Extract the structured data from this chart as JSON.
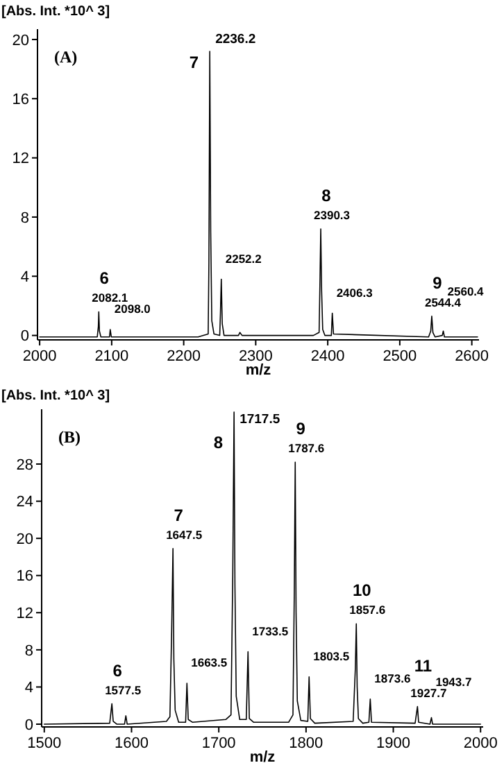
{
  "chart_data": [
    {
      "type": "line",
      "title": "(A)",
      "ylabel": "[Abs. Int. *10^ 3]",
      "xlabel": "m/z",
      "xlim": [
        1997,
        2610
      ],
      "xticks": [
        2000,
        2100,
        2200,
        2300,
        2400,
        2500,
        2600
      ],
      "ylim": [
        -0.3,
        20.7
      ],
      "yticks": [
        0,
        4,
        8,
        12,
        16,
        20
      ],
      "x": [
        2000,
        2080,
        2081.5,
        2082.1,
        2083,
        2085,
        2097,
        2098,
        2099.5,
        2220,
        2234,
        2235,
        2236.2,
        2237.5,
        2239,
        2242,
        2250,
        2251,
        2252.2,
        2253.5,
        2256,
        2276,
        2278,
        2281,
        2380,
        2388,
        2389.3,
        2390.3,
        2391.5,
        2393,
        2396,
        2405,
        2406.3,
        2408,
        2540,
        2543,
        2544.4,
        2546,
        2549,
        2559,
        2560.4,
        2562,
        2608
      ],
      "series": [
        {
          "color": "#000000",
          "values": [
            -0.1,
            -0.1,
            0.6,
            1.6,
            0.3,
            -0.1,
            -0.1,
            0.4,
            -0.1,
            -0.1,
            0.1,
            5,
            19.2,
            7,
            1,
            0.1,
            0,
            1.5,
            3.8,
            0.8,
            0,
            0,
            0.2,
            0,
            0,
            0.2,
            4,
            7.2,
            3,
            0.4,
            0,
            0,
            1.5,
            0.1,
            -0.1,
            0.3,
            1.3,
            0.2,
            -0.1,
            0,
            0.3,
            -0.1,
            -0.1
          ]
        }
      ],
      "annotations": [
        {
          "text": "2082.1",
          "x": 2082.1,
          "y": 1.6
        },
        {
          "text": "6",
          "x": 2082.1,
          "y": 1.6
        },
        {
          "text": "2098.0",
          "x": 2098,
          "y": 0.4
        },
        {
          "text": "2236.2",
          "x": 2236.2,
          "y": 19.2
        },
        {
          "text": "7",
          "x": 2236.2,
          "y": 19.2
        },
        {
          "text": "2252.2",
          "x": 2252.2,
          "y": 3.8
        },
        {
          "text": "2390.3",
          "x": 2390.3,
          "y": 7.2
        },
        {
          "text": "8",
          "x": 2390.3,
          "y": 7.2
        },
        {
          "text": "2406.3",
          "x": 2406.3,
          "y": 1.5
        },
        {
          "text": "2544.4",
          "x": 2544.4,
          "y": 1.3
        },
        {
          "text": "9",
          "x": 2544.4,
          "y": 1.3
        },
        {
          "text": "2560.4",
          "x": 2560.4,
          "y": 0.3
        }
      ]
    },
    {
      "type": "line",
      "title": "(B)",
      "ylabel": "[Abs. Int. *10^ 3]",
      "xlabel": "m/z",
      "xlim": [
        1497,
        2003
      ],
      "xticks": [
        1500,
        1600,
        1700,
        1800,
        1900,
        2000
      ],
      "ylim": [
        -0.3,
        33.9
      ],
      "yticks": [
        0,
        4,
        8,
        12,
        16,
        20,
        24,
        28
      ],
      "x": [
        1500,
        1575,
        1577.5,
        1579,
        1583,
        1592,
        1593.5,
        1595,
        1640,
        1644,
        1646,
        1647.5,
        1648.5,
        1650,
        1654,
        1662,
        1663.5,
        1665,
        1670,
        1708,
        1714,
        1716,
        1717.5,
        1718.5,
        1720,
        1724,
        1731.5,
        1733.5,
        1735,
        1740,
        1780,
        1785,
        1786.5,
        1787.6,
        1788.6,
        1790,
        1794,
        1802,
        1803.5,
        1805,
        1810,
        1854,
        1856.5,
        1857.6,
        1858.6,
        1860,
        1865,
        1872,
        1873.6,
        1875,
        1925,
        1927.7,
        1929,
        1942,
        1943.7,
        1945,
        2000
      ],
      "series": [
        {
          "color": "#000000",
          "values": [
            0,
            0.1,
            2.2,
            0.3,
            0,
            0,
            0.9,
            0,
            0.3,
            0.8,
            10,
            18.9,
            7,
            1.5,
            0.2,
            0.2,
            4.4,
            0.5,
            0.2,
            0.5,
            1,
            16,
            33.6,
            15,
            3,
            0.5,
            0.5,
            7.8,
            0.6,
            0.2,
            0.2,
            1,
            14,
            28.2,
            12,
            2.5,
            0.4,
            0.3,
            5.1,
            0.6,
            0.1,
            0.3,
            6,
            10.8,
            4,
            0.6,
            0.1,
            0.2,
            2.7,
            0.2,
            0.1,
            1.9,
            0.2,
            0,
            0.7,
            0,
            0
          ]
        }
      ],
      "annotations": [
        {
          "text": "1577.5",
          "x": 1577.5,
          "y": 2.2
        },
        {
          "text": "6",
          "x": 1577.5,
          "y": 2.2
        },
        {
          "text": "1647.5",
          "x": 1647.5,
          "y": 18.9
        },
        {
          "text": "7",
          "x": 1647.5,
          "y": 18.9
        },
        {
          "text": "1663.5",
          "x": 1663.5,
          "y": 4.4
        },
        {
          "text": "1717.5",
          "x": 1717.5,
          "y": 33.6
        },
        {
          "text": "8",
          "x": 1717.5,
          "y": 33.6
        },
        {
          "text": "1733.5",
          "x": 1733.5,
          "y": 7.8
        },
        {
          "text": "1787.6",
          "x": 1787.6,
          "y": 28.2
        },
        {
          "text": "9",
          "x": 1787.6,
          "y": 28.2
        },
        {
          "text": "1803.5",
          "x": 1803.5,
          "y": 5.1
        },
        {
          "text": "1857.6",
          "x": 1857.6,
          "y": 10.8
        },
        {
          "text": "10",
          "x": 1857.6,
          "y": 10.8
        },
        {
          "text": "1873.6",
          "x": 1873.6,
          "y": 2.7
        },
        {
          "text": "1927.7",
          "x": 1927.7,
          "y": 1.9
        },
        {
          "text": "11",
          "x": 1927.7,
          "y": 1.9
        },
        {
          "text": "1943.7",
          "x": 1943.7,
          "y": 0.7
        }
      ]
    }
  ]
}
